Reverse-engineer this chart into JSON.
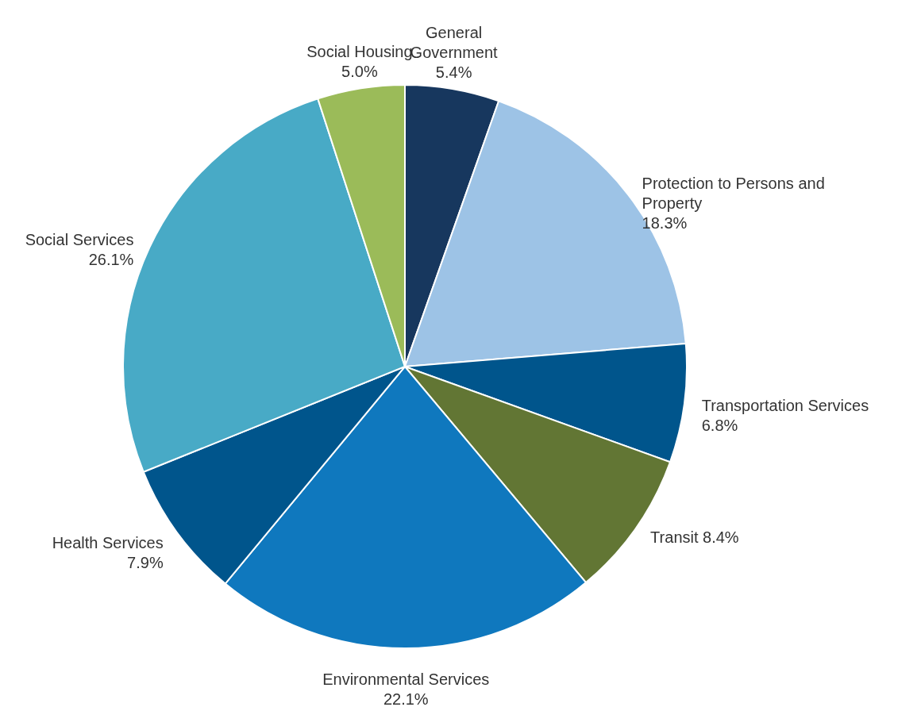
{
  "chart_data": {
    "type": "pie",
    "categories": [
      "General Government",
      "Protection to Persons and Property",
      "Transportation Services",
      "Transit",
      "Environmental Services",
      "Health Services",
      "Social Services",
      "Social Housing"
    ],
    "values": [
      5.4,
      18.3,
      6.8,
      8.4,
      22.1,
      7.9,
      26.1,
      5.0
    ],
    "value_labels": [
      "5.4%",
      "18.3%",
      "6.8%",
      "8.4%",
      "22.1%",
      "7.9%",
      "26.1%",
      "5.0%"
    ],
    "colors": [
      "#17375e",
      "#9dc3e6",
      "#00558c",
      "#627634",
      "#0f78be",
      "#00558c",
      "#48aac6",
      "#9bbb59"
    ]
  }
}
